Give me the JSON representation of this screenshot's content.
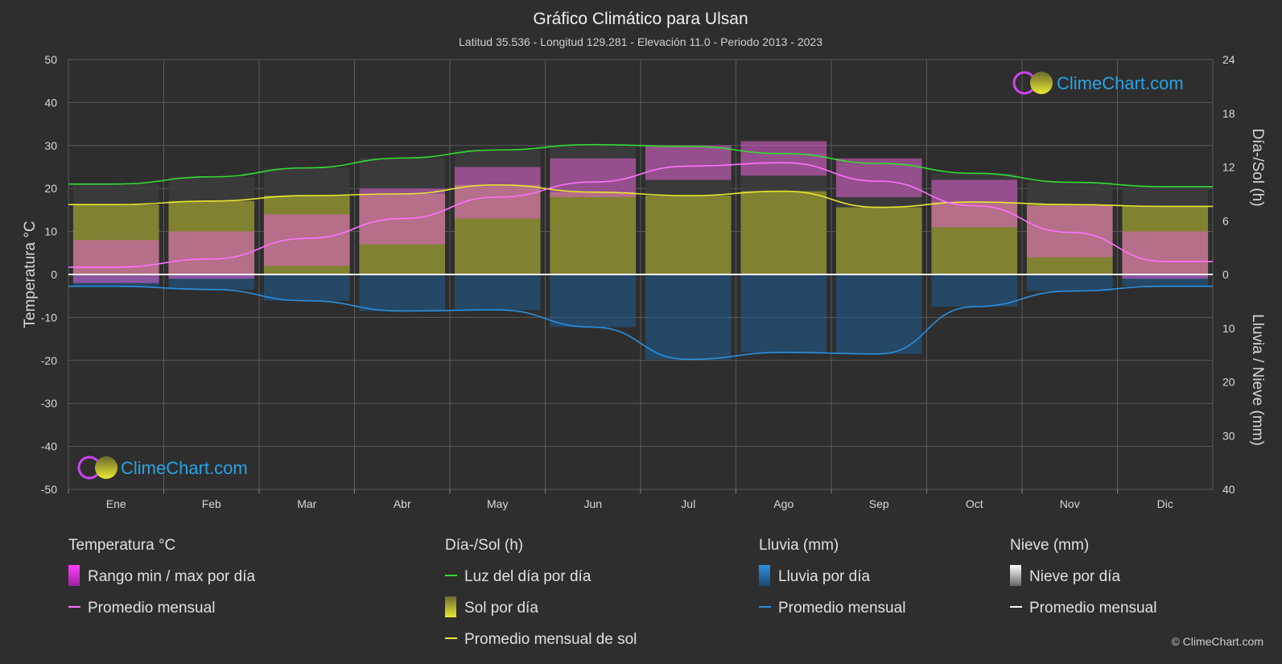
{
  "header": {
    "title": "Gráfico Climático para Ulsan",
    "subtitle": "Latitud 35.536 - Longitud 129.281 - Elevación 11.0 - Periodo 2013 - 2023"
  },
  "axes": {
    "left_label": "Temperatura °C",
    "right_top_label": "Día-/Sol (h)",
    "right_bottom_label": "Lluvia / Nieve (mm)",
    "left_ticks": [
      "50",
      "40",
      "30",
      "20",
      "10",
      "0",
      "-10",
      "-20",
      "-30",
      "-40",
      "-50"
    ],
    "right_top_ticks": [
      "24",
      "18",
      "12",
      "6",
      "0"
    ],
    "right_bottom_ticks": [
      "10",
      "20",
      "30",
      "40"
    ]
  },
  "logo": {
    "text": "ClimeChart.com"
  },
  "copyright": "© ClimeChart.com",
  "legend": {
    "temp": {
      "header": "Temperatura °C",
      "range": "Rango min / max por día",
      "avg": "Promedio mensual"
    },
    "sun": {
      "header": "Día-/Sol (h)",
      "daylight": "Luz del día por día",
      "sun": "Sol por día",
      "avg": "Promedio mensual de sol"
    },
    "rain": {
      "header": "Lluvia (mm)",
      "daily": "Lluvia por día",
      "avg": "Promedio mensual"
    },
    "snow": {
      "header": "Nieve (mm)",
      "daily": "Nieve por día",
      "avg": "Promedio mensual"
    }
  },
  "colors": {
    "temp_avg": "#ff70ff",
    "temp_range": "#e040e0",
    "daylight": "#33dd33",
    "sun_avg": "#e8e830",
    "sun_fill": "#b8b830",
    "rain": "#2a90e0",
    "snow": "#ffffff"
  },
  "chart_data": {
    "type": "line",
    "categories": [
      "Ene",
      "Feb",
      "Mar",
      "Abr",
      "May",
      "Jun",
      "Jul",
      "Ago",
      "Sep",
      "Oct",
      "Nov",
      "Dic"
    ],
    "temp_ylim": [
      -50,
      50
    ],
    "hours_ylim": [
      0,
      24
    ],
    "precip_ylim": [
      0,
      40
    ],
    "series": [
      {
        "name": "Rango min / max por día",
        "axis": "temp",
        "min": [
          -2,
          -1,
          2,
          7,
          13,
          18,
          22,
          23,
          18,
          11,
          4,
          -1
        ],
        "max": [
          8,
          10,
          14,
          20,
          25,
          27,
          30,
          31,
          27,
          22,
          16,
          10
        ]
      },
      {
        "name": "Promedio mensual",
        "axis": "temp",
        "values": [
          1.7,
          3.6,
          8.4,
          13.0,
          18.0,
          21.5,
          25.2,
          26.0,
          21.7,
          16.0,
          9.8,
          3.0
        ]
      },
      {
        "name": "Luz del día por día",
        "axis": "hours",
        "values": [
          10.1,
          10.9,
          11.9,
          13.0,
          13.9,
          14.5,
          14.3,
          13.5,
          12.4,
          11.3,
          10.3,
          9.8
        ]
      },
      {
        "name": "Sol por día",
        "axis": "hours",
        "values": [
          7.8,
          8.2,
          8.8,
          9.0,
          10.0,
          9.2,
          8.8,
          9.3,
          7.5,
          8.1,
          7.8,
          7.6
        ]
      },
      {
        "name": "Promedio mensual de sol",
        "axis": "hours",
        "values": [
          7.8,
          8.2,
          8.8,
          9.0,
          10.0,
          9.2,
          8.8,
          9.3,
          7.5,
          8.1,
          7.8,
          7.6
        ]
      },
      {
        "name": "Lluvia por día",
        "axis": "precip",
        "values": [
          2.2,
          2.8,
          4.9,
          6.8,
          6.6,
          9.8,
          15.8,
          14.5,
          14.8,
          6.0,
          3.1,
          2.2
        ]
      },
      {
        "name": "Promedio mensual",
        "axis": "precip",
        "values": [
          2.2,
          2.8,
          4.9,
          6.8,
          6.6,
          9.8,
          15.8,
          14.5,
          14.8,
          6.0,
          3.1,
          2.2
        ]
      },
      {
        "name": "Promedio mensual",
        "axis": "snow",
        "values": [
          0,
          0,
          0,
          0,
          0,
          0,
          0,
          0,
          0,
          0,
          0,
          0
        ]
      }
    ]
  }
}
